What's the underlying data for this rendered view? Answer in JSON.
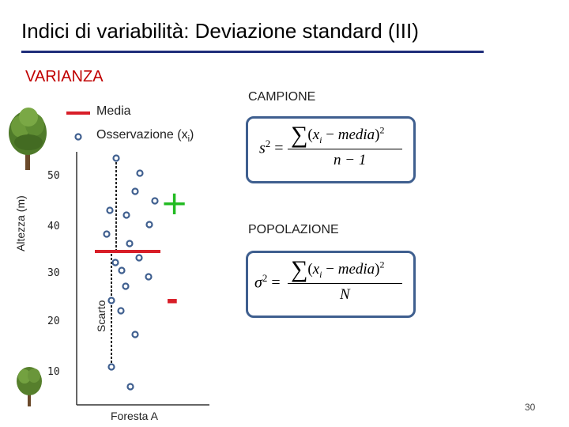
{
  "title": "Indici di variabilità: Deviazione standard (III)",
  "section": "VARIANZA",
  "legend": {
    "mean_label": "Media",
    "observation_label_main": "Osservazione (x",
    "observation_label_sub": "i",
    "observation_label_end": ")"
  },
  "chart": {
    "y_axis_title": "Altezza (m)",
    "y_ticks": [
      "50",
      "40",
      "30",
      "20",
      "10"
    ],
    "x_axis_label": "Foresta A",
    "deviation_label": "Scarto",
    "plus_sign": "+",
    "minus_sign": "-"
  },
  "formulas": {
    "sample_label": "CAMPIONE",
    "population_label": "POPOLAZIONE",
    "sample_lhs": "s",
    "sample_lhs_exp": "2",
    "population_lhs": "σ",
    "population_lhs_exp": "2",
    "equals": "=",
    "sum_symbol": "∑",
    "open_paren": "(",
    "x_var": "x",
    "x_sub": "i",
    "minus_op": "−",
    "media": "media",
    "close_paren": ")",
    "exp_2": "2",
    "sample_denominator": "n − 1",
    "population_denominator": "N"
  },
  "colors": {
    "title_rule": "#1f2d7a",
    "section": "#c00000",
    "mean_line": "#d81e28",
    "plus": "#22bb22",
    "minus": "#d81e28",
    "marker": "#3f5f8f",
    "box_border": "#3f5f8f"
  },
  "icons": {
    "tree_top": "tree-icon",
    "tree_bottom": "tree-icon"
  },
  "page_number": "30"
}
